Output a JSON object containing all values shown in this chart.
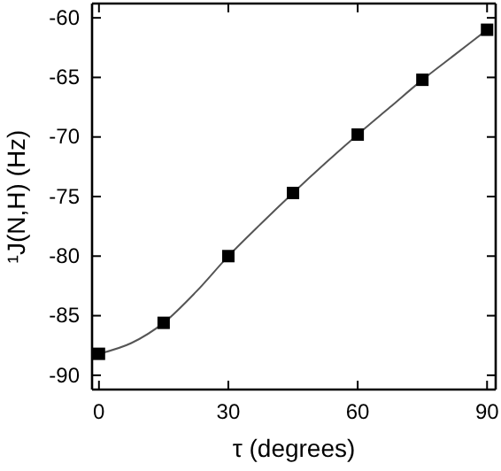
{
  "chart_data": {
    "type": "scatter",
    "xlabel": "τ (degrees)",
    "ylabel": "¹J(N,H) (Hz)",
    "xlim": [
      -1.6,
      92
    ],
    "ylim": [
      -91.2,
      -58.8
    ],
    "xticks": [
      0,
      30,
      60,
      90
    ],
    "yticks": [
      -90,
      -85,
      -80,
      -75,
      -70,
      -65,
      -60
    ],
    "grid": false,
    "series": [
      {
        "color": "#000000",
        "marker": "square",
        "x": [
          0,
          15,
          30,
          45,
          60,
          75,
          90
        ],
        "values": [
          -88.2,
          -85.6,
          -80.0,
          -74.7,
          -69.8,
          -65.2,
          -61.0
        ]
      },
      {
        "type": "line",
        "color": "#555555",
        "line_style": "solid",
        "marker": "none",
        "x": [
          0,
          7.5,
          15,
          22.5,
          30,
          37.5,
          45,
          52.5,
          60,
          67.5,
          75,
          82.5,
          90
        ],
        "values": [
          -88.2,
          -87.3,
          -85.6,
          -83.0,
          -80.0,
          -77.3,
          -74.7,
          -72.2,
          -69.8,
          -67.5,
          -65.2,
          -63.1,
          -61.0
        ]
      }
    ]
  }
}
